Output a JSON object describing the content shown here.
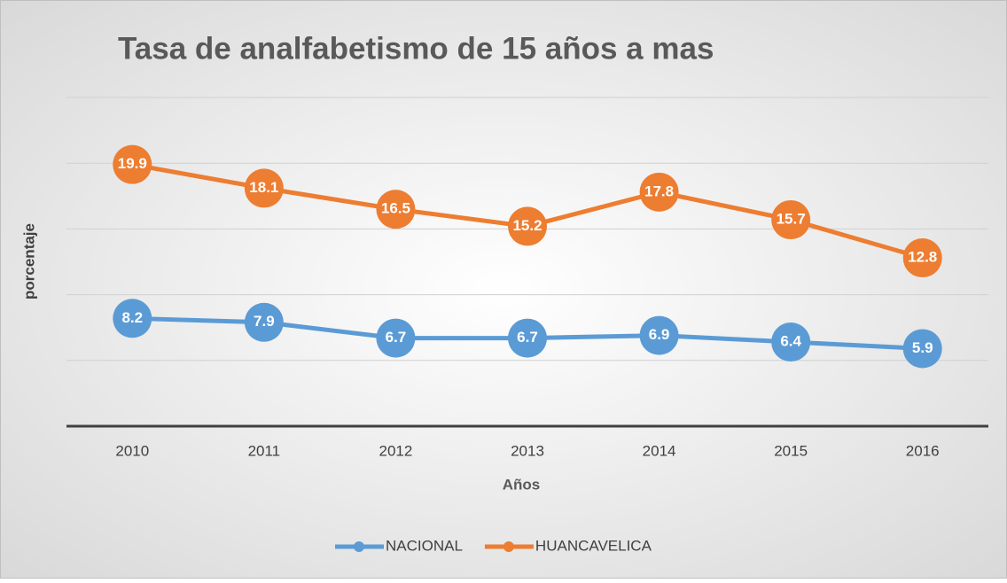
{
  "chart_data": {
    "type": "line",
    "title": "Tasa de analfabetismo de 15 años a mas",
    "x_label": "Años",
    "y_label": "porcentaje",
    "categories": [
      "2010",
      "2011",
      "2012",
      "2013",
      "2014",
      "2015",
      "2016"
    ],
    "series": [
      {
        "name": "NACIONAL",
        "color": "#5b9bd5",
        "values": [
          8.2,
          7.9,
          6.7,
          6.7,
          6.9,
          6.4,
          5.9
        ]
      },
      {
        "name": "HUANCAVELICA",
        "color": "#ed7d31",
        "values": [
          19.9,
          18.1,
          16.5,
          15.2,
          17.8,
          15.7,
          12.8
        ]
      }
    ],
    "ylim": [
      0,
      25
    ],
    "yticks": [
      0,
      5,
      10,
      15,
      20,
      25
    ],
    "grid": true,
    "legend": "bottom"
  }
}
